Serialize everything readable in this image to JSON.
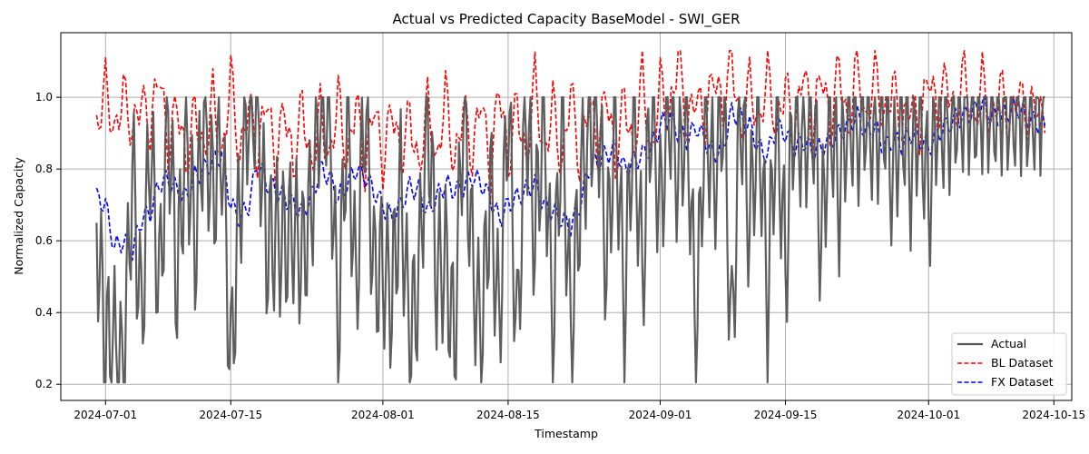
{
  "chart_data": {
    "type": "line",
    "title": "Actual vs Predicted Capacity BaseModel - SWI_GER",
    "xlabel": "Timestamp",
    "ylabel": "Normalized Capacity",
    "xlim": [
      "2024-06-26",
      "2024-10-17"
    ],
    "ylim": [
      0.155,
      1.18
    ],
    "x_ticks": [
      "2024-07-01",
      "2024-07-15",
      "2024-08-01",
      "2024-08-15",
      "2024-09-01",
      "2024-09-15",
      "2024-10-01",
      "2024-10-15"
    ],
    "y_ticks": [
      0.2,
      0.4,
      0.6,
      0.8,
      1.0
    ],
    "y_tick_labels": [
      "0.2",
      "0.4",
      "0.6",
      "0.8",
      "1.0"
    ],
    "grid": true,
    "legend_position": "bottom-right",
    "series": [
      {
        "name": "Actual",
        "color": "#555555",
        "style": "solid",
        "x": [
          "2024-06-30",
          "2024-07-01",
          "2024-07-02",
          "2024-07-03",
          "2024-07-04",
          "2024-07-05",
          "2024-07-06",
          "2024-07-07",
          "2024-07-08",
          "2024-07-09",
          "2024-07-10",
          "2024-07-11",
          "2024-07-12",
          "2024-07-13",
          "2024-07-14",
          "2024-07-15",
          "2024-07-16",
          "2024-07-17",
          "2024-07-18",
          "2024-07-19",
          "2024-07-20",
          "2024-07-21",
          "2024-07-22",
          "2024-07-23",
          "2024-07-24",
          "2024-07-25",
          "2024-07-26",
          "2024-07-27",
          "2024-07-28",
          "2024-07-29",
          "2024-07-30",
          "2024-07-31",
          "2024-08-01",
          "2024-08-02",
          "2024-08-03",
          "2024-08-04",
          "2024-08-05",
          "2024-08-06",
          "2024-08-07",
          "2024-08-08",
          "2024-08-09",
          "2024-08-10",
          "2024-08-11",
          "2024-08-12",
          "2024-08-13",
          "2024-08-14",
          "2024-08-15",
          "2024-08-16",
          "2024-08-17",
          "2024-08-18",
          "2024-08-19",
          "2024-08-20",
          "2024-08-21",
          "2024-08-22",
          "2024-08-23",
          "2024-08-24",
          "2024-08-25",
          "2024-08-26",
          "2024-08-27",
          "2024-08-28",
          "2024-08-29",
          "2024-08-30",
          "2024-08-31",
          "2024-09-01",
          "2024-09-02",
          "2024-09-03",
          "2024-09-04",
          "2024-09-05",
          "2024-09-06",
          "2024-09-07",
          "2024-09-08",
          "2024-09-09",
          "2024-09-10",
          "2024-09-11",
          "2024-09-12",
          "2024-09-13",
          "2024-09-14",
          "2024-09-15",
          "2024-09-16",
          "2024-09-17",
          "2024-09-18",
          "2024-09-19",
          "2024-09-20",
          "2024-09-21",
          "2024-09-22",
          "2024-09-23",
          "2024-09-24",
          "2024-09-25",
          "2024-09-26",
          "2024-09-27",
          "2024-09-28",
          "2024-09-29",
          "2024-09-30",
          "2024-10-01",
          "2024-10-02",
          "2024-10-03",
          "2024-10-04",
          "2024-10-05",
          "2024-10-06",
          "2024-10-07",
          "2024-10-08",
          "2024-10-09",
          "2024-10-10",
          "2024-10-11",
          "2024-10-12",
          "2024-10-13",
          "2024-10-14"
        ],
        "y": [
          0.65,
          0.31,
          0.31,
          0.2,
          0.81,
          0.37,
          0.89,
          0.45,
          0.98,
          0.47,
          0.92,
          0.58,
          0.96,
          0.72,
          0.89,
          0.24,
          0.71,
          1.0,
          1.0,
          0.58,
          0.62,
          0.59,
          0.64,
          0.55,
          0.7,
          1.0,
          1.0,
          0.31,
          1.0,
          0.44,
          1.0,
          0.5,
          0.53,
          0.44,
          0.76,
          0.31,
          0.49,
          1.0,
          0.5,
          0.55,
          0.31,
          1.0,
          0.55,
          0.31,
          0.76,
          0.35,
          1.0,
          0.31,
          1.0,
          0.6,
          1.0,
          0.31,
          1.0,
          0.33,
          0.72,
          0.92,
          1.0,
          0.52,
          0.98,
          0.39,
          1.0,
          0.49,
          1.0,
          0.68,
          1.0,
          0.78,
          1.0,
          0.29,
          1.0,
          0.75,
          1.0,
          0.31,
          1.0,
          0.63,
          1.0,
          0.42,
          1.0,
          0.51,
          1.0,
          0.86,
          1.0,
          0.58,
          1.0,
          0.72,
          1.0,
          0.9,
          1.0,
          0.88,
          1.0,
          0.76,
          1.0,
          0.79,
          1.0,
          0.7,
          1.0,
          0.92,
          1.0,
          1.0,
          1.0,
          1.0,
          1.0,
          1.0,
          1.0,
          1.0,
          1.0,
          1.0,
          1.0
        ]
      },
      {
        "name": "BL Dataset",
        "color": "#ff0000",
        "style": "dashed",
        "x": [
          "2024-06-30",
          "2024-07-01",
          "2024-07-02",
          "2024-07-03",
          "2024-07-04",
          "2024-07-05",
          "2024-07-06",
          "2024-07-07",
          "2024-07-08",
          "2024-07-09",
          "2024-07-10",
          "2024-07-11",
          "2024-07-12",
          "2024-07-13",
          "2024-07-14",
          "2024-07-15",
          "2024-07-16",
          "2024-07-17",
          "2024-07-18",
          "2024-07-19",
          "2024-07-20",
          "2024-07-21",
          "2024-07-22",
          "2024-07-23",
          "2024-07-24",
          "2024-07-25",
          "2024-07-26",
          "2024-07-27",
          "2024-07-28",
          "2024-07-29",
          "2024-07-30",
          "2024-07-31",
          "2024-08-01",
          "2024-08-02",
          "2024-08-03",
          "2024-08-04",
          "2024-08-05",
          "2024-08-06",
          "2024-08-07",
          "2024-08-08",
          "2024-08-09",
          "2024-08-10",
          "2024-08-11",
          "2024-08-12",
          "2024-08-13",
          "2024-08-14",
          "2024-08-15",
          "2024-08-16",
          "2024-08-17",
          "2024-08-18",
          "2024-08-19",
          "2024-08-20",
          "2024-08-21",
          "2024-08-22",
          "2024-08-23",
          "2024-08-24",
          "2024-08-25",
          "2024-08-26",
          "2024-08-27",
          "2024-08-28",
          "2024-08-29",
          "2024-08-30",
          "2024-08-31",
          "2024-09-01",
          "2024-09-02",
          "2024-09-03",
          "2024-09-04",
          "2024-09-05",
          "2024-09-06",
          "2024-09-07",
          "2024-09-08",
          "2024-09-09",
          "2024-09-10",
          "2024-09-11",
          "2024-09-12",
          "2024-09-13",
          "2024-09-14",
          "2024-09-15",
          "2024-09-16",
          "2024-09-17",
          "2024-09-18",
          "2024-09-19",
          "2024-09-20",
          "2024-09-21",
          "2024-09-22",
          "2024-09-23",
          "2024-09-24",
          "2024-09-25",
          "2024-09-26",
          "2024-09-27",
          "2024-09-28",
          "2024-09-29",
          "2024-09-30",
          "2024-10-01",
          "2024-10-02",
          "2024-10-03",
          "2024-10-04",
          "2024-10-05",
          "2024-10-06",
          "2024-10-07",
          "2024-10-08",
          "2024-10-09",
          "2024-10-10",
          "2024-10-11",
          "2024-10-12",
          "2024-10-13",
          "2024-10-14"
        ],
        "y": [
          0.9,
          1.05,
          0.88,
          1.03,
          0.89,
          1.01,
          0.9,
          1.09,
          0.84,
          1.0,
          0.8,
          0.98,
          0.82,
          1.02,
          0.8,
          1.08,
          0.81,
          1.0,
          0.82,
          1.02,
          0.8,
          0.99,
          0.79,
          1.0,
          0.78,
          0.98,
          0.8,
          1.02,
          0.8,
          1.01,
          0.78,
          1.0,
          0.8,
          0.99,
          0.81,
          0.97,
          0.78,
          1.0,
          0.79,
          1.03,
          0.79,
          0.99,
          0.82,
          1.02,
          0.77,
          1.05,
          0.8,
          1.0,
          0.8,
          1.07,
          0.81,
          1.0,
          0.79,
          1.04,
          0.8,
          1.0,
          0.86,
          1.03,
          0.8,
          1.02,
          0.82,
          1.08,
          0.8,
          1.06,
          0.92,
          1.13,
          0.91,
          1.02,
          0.92,
          1.08,
          0.95,
          1.13,
          0.88,
          1.06,
          0.9,
          1.08,
          0.9,
          1.05,
          0.88,
          1.1,
          0.89,
          1.09,
          0.9,
          1.11,
          0.88,
          1.13,
          0.9,
          1.1,
          0.92,
          1.05,
          0.9,
          1.0,
          0.9,
          1.08,
          0.94,
          1.07,
          0.92,
          1.1,
          0.9,
          1.07,
          0.9,
          1.05,
          0.91,
          1.03,
          0.94,
          1.0,
          0.9
        ]
      },
      {
        "name": "FX Dataset",
        "color": "#0000ff",
        "style": "dashed",
        "x": [
          "2024-06-30",
          "2024-07-01",
          "2024-07-02",
          "2024-07-03",
          "2024-07-04",
          "2024-07-05",
          "2024-07-06",
          "2024-07-07",
          "2024-07-08",
          "2024-07-09",
          "2024-07-10",
          "2024-07-11",
          "2024-07-12",
          "2024-07-13",
          "2024-07-14",
          "2024-07-15",
          "2024-07-16",
          "2024-07-17",
          "2024-07-18",
          "2024-07-19",
          "2024-07-20",
          "2024-07-21",
          "2024-07-22",
          "2024-07-23",
          "2024-07-24",
          "2024-07-25",
          "2024-07-26",
          "2024-07-27",
          "2024-07-28",
          "2024-07-29",
          "2024-07-30",
          "2024-07-31",
          "2024-08-01",
          "2024-08-02",
          "2024-08-03",
          "2024-08-04",
          "2024-08-05",
          "2024-08-06",
          "2024-08-07",
          "2024-08-08",
          "2024-08-09",
          "2024-08-10",
          "2024-08-11",
          "2024-08-12",
          "2024-08-13",
          "2024-08-14",
          "2024-08-15",
          "2024-08-16",
          "2024-08-17",
          "2024-08-18",
          "2024-08-19",
          "2024-08-20",
          "2024-08-21",
          "2024-08-22",
          "2024-08-23",
          "2024-08-24",
          "2024-08-25",
          "2024-08-26",
          "2024-08-27",
          "2024-08-28",
          "2024-08-29",
          "2024-08-30",
          "2024-08-31",
          "2024-09-01",
          "2024-09-02",
          "2024-09-03",
          "2024-09-04",
          "2024-09-05",
          "2024-09-06",
          "2024-09-07",
          "2024-09-08",
          "2024-09-09",
          "2024-09-10",
          "2024-09-11",
          "2024-09-12",
          "2024-09-13",
          "2024-09-14",
          "2024-09-15",
          "2024-09-16",
          "2024-09-17",
          "2024-09-18",
          "2024-09-19",
          "2024-09-20",
          "2024-09-21",
          "2024-09-22",
          "2024-09-23",
          "2024-09-24",
          "2024-09-25",
          "2024-09-26",
          "2024-09-27",
          "2024-09-28",
          "2024-09-29",
          "2024-09-30",
          "2024-10-01",
          "2024-10-02",
          "2024-10-03",
          "2024-10-04",
          "2024-10-05",
          "2024-10-06",
          "2024-10-07",
          "2024-10-08",
          "2024-10-09",
          "2024-10-10",
          "2024-10-11",
          "2024-10-12",
          "2024-10-13",
          "2024-10-14"
        ],
        "y": [
          0.72,
          0.7,
          0.58,
          0.6,
          0.57,
          0.66,
          0.68,
          0.76,
          0.77,
          0.74,
          0.72,
          0.78,
          0.8,
          0.82,
          0.84,
          0.7,
          0.66,
          0.7,
          0.82,
          0.76,
          0.74,
          0.72,
          0.7,
          0.68,
          0.72,
          0.8,
          0.78,
          0.72,
          0.76,
          0.8,
          0.78,
          0.74,
          0.7,
          0.66,
          0.7,
          0.75,
          0.74,
          0.68,
          0.72,
          0.76,
          0.74,
          0.75,
          0.78,
          0.76,
          0.72,
          0.66,
          0.7,
          0.72,
          0.74,
          0.76,
          0.7,
          0.68,
          0.66,
          0.64,
          0.7,
          0.8,
          0.82,
          0.84,
          0.86,
          0.8,
          0.82,
          0.84,
          0.86,
          0.92,
          0.95,
          0.9,
          0.88,
          0.92,
          0.88,
          0.84,
          0.86,
          0.96,
          0.94,
          0.92,
          0.86,
          0.84,
          0.92,
          0.9,
          0.86,
          0.88,
          0.85,
          0.86,
          0.88,
          0.9,
          0.92,
          0.95,
          0.9,
          0.92,
          0.86,
          0.88,
          0.87,
          0.9,
          0.88,
          0.86,
          0.9,
          0.92,
          0.94,
          0.95,
          0.96,
          0.98,
          0.95,
          0.94,
          0.96,
          0.97,
          0.94,
          0.93,
          0.92
        ]
      }
    ]
  }
}
